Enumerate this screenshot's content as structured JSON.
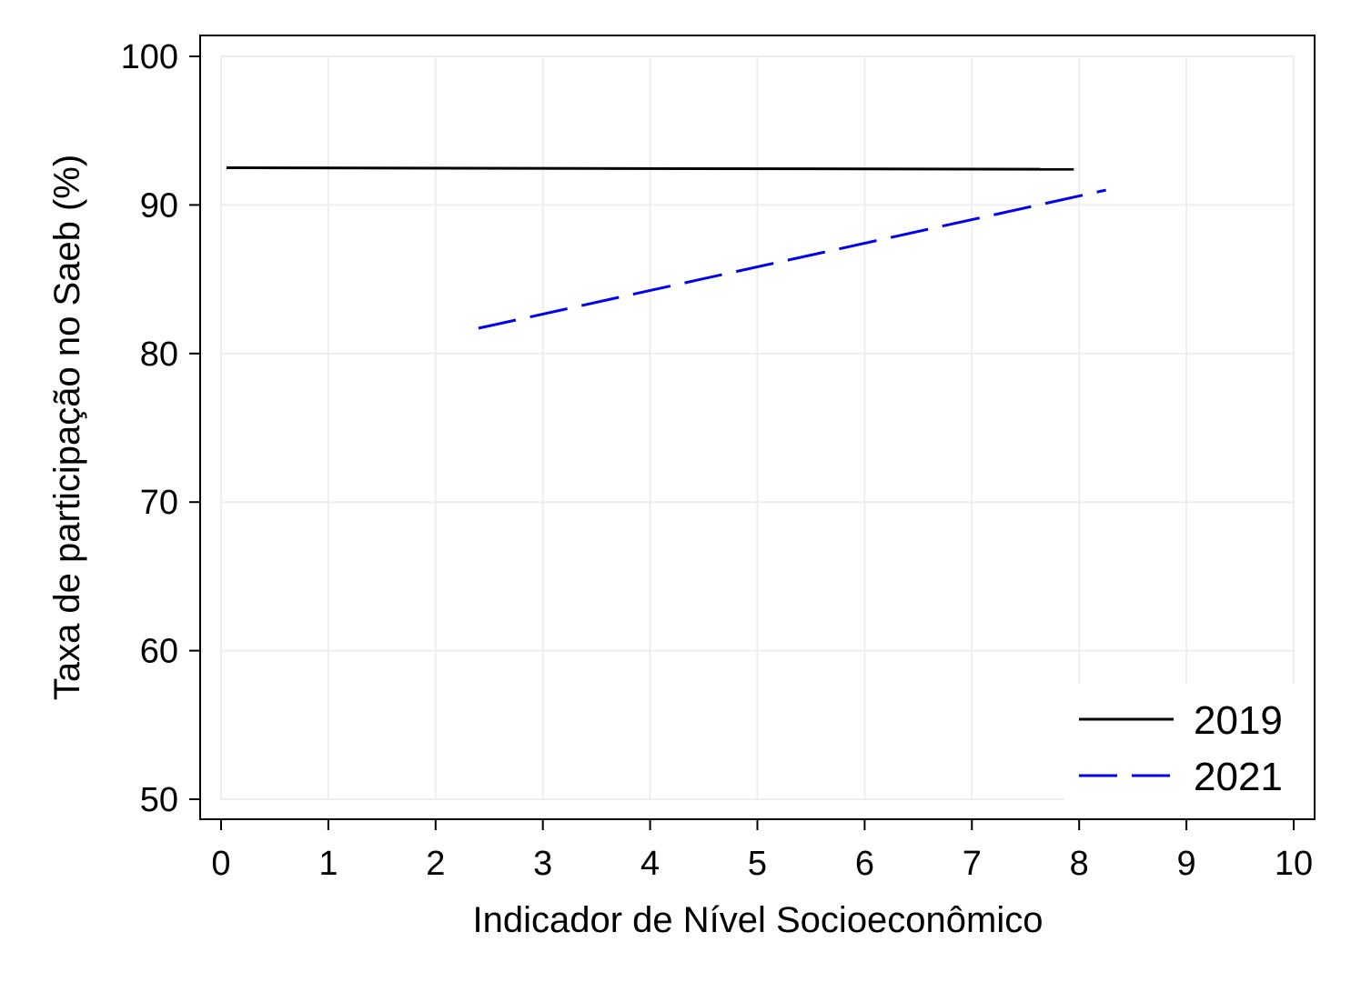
{
  "chart_data": {
    "type": "line",
    "title": "",
    "xlabel": "Indicador de Nível Socioeconômico",
    "ylabel": "Taxa de participação no Saeb (%)",
    "xlim": [
      0,
      10
    ],
    "ylim": [
      50,
      100
    ],
    "xticks": [
      0,
      1,
      2,
      3,
      4,
      5,
      6,
      7,
      8,
      9,
      10
    ],
    "yticks": [
      50,
      60,
      70,
      80,
      90,
      100
    ],
    "grid": true,
    "legend_position": "bottom-right",
    "series": [
      {
        "name": "2019",
        "color": "#000000",
        "dash": "solid",
        "x": [
          0.05,
          7.95
        ],
        "y": [
          92.5,
          92.4
        ]
      },
      {
        "name": "2021",
        "color": "#0000ee",
        "dash": "dashed",
        "x": [
          2.4,
          8.25
        ],
        "y": [
          81.7,
          91.0
        ]
      }
    ]
  }
}
